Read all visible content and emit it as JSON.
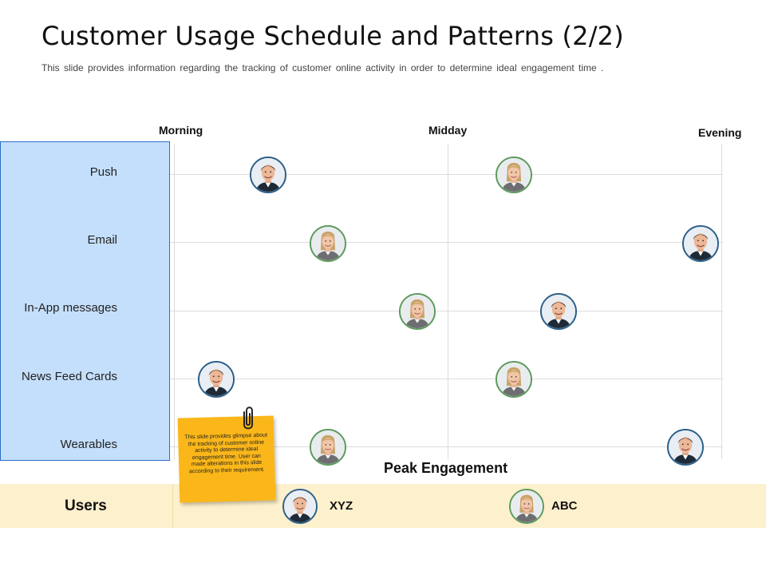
{
  "header": {
    "title": "Customer Usage Schedule and Patterns (2/2)",
    "subtitle": "This slide provides information regarding the tracking of customer online activity in order to determine ideal engagement time ."
  },
  "time_axis": {
    "morning": "Morning",
    "midday": "Midday",
    "evening": "Evening"
  },
  "channels": [
    "Push",
    "Email",
    "In-App messages",
    "News Feed Cards",
    "Wearables"
  ],
  "peak_label": "Peak Engagement",
  "users": {
    "label": "Users",
    "xyz": "XYZ",
    "abc": "ABC"
  },
  "sticky_note": "This slide provides glimpse about the tracking of customer online activity to determine ideal engagement time. User can made alterations in this slide according to their requirement.",
  "colors": {
    "panel": "#c4dffb",
    "panel_border": "#2a6fc9",
    "band": "#fdf0cc",
    "sticky": "#fbb719"
  }
}
